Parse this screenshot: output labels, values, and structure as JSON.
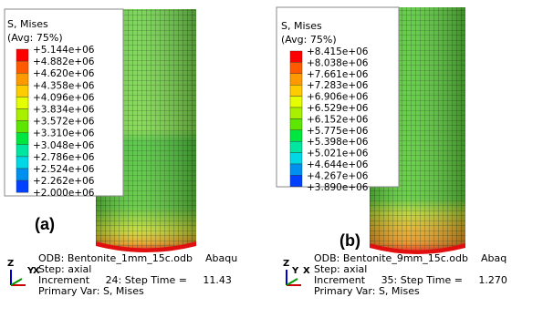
{
  "panels": [
    {
      "legend": {
        "title": "S, Mises",
        "avg": "(Avg: 75%)",
        "levels": [
          "+5.144e+06",
          "+4.882e+06",
          "+4.620e+06",
          "+4.358e+06",
          "+4.096e+06",
          "+3.834e+06",
          "+3.572e+06",
          "+3.310e+06",
          "+3.048e+06",
          "+2.786e+06",
          "+2.524e+06",
          "+2.262e+06",
          "+2.000e+06"
        ]
      },
      "label": "(a)",
      "triad": {
        "z": "Z",
        "y": "Y",
        "x": "X"
      },
      "info": [
        "ODB: Bentonite_1mm_15c.odb    Abaqu",
        "Step: axial",
        "Increment     24: Step Time =     11.43",
        "Primary Var: S, Mises"
      ]
    },
    {
      "legend": {
        "title": "S, Mises",
        "avg": "(Avg: 75%)",
        "levels": [
          "+8.415e+06",
          "+8.038e+06",
          "+7.661e+06",
          "+7.283e+06",
          "+6.906e+06",
          "+6.529e+06",
          "+6.152e+06",
          "+5.775e+06",
          "+5.398e+06",
          "+5.021e+06",
          "+4.644e+06",
          "+4.267e+06",
          "+3.890e+06"
        ]
      },
      "label": "(b)",
      "triad": {
        "z": "Z",
        "y": "Y",
        "x": "X"
      },
      "info": [
        "ODB: Bentonite_9mm_15c.odb    Abaq",
        "Step: axial",
        "Increment     35: Step Time =     1.270",
        "Primary Var: S, Mises"
      ]
    }
  ]
}
